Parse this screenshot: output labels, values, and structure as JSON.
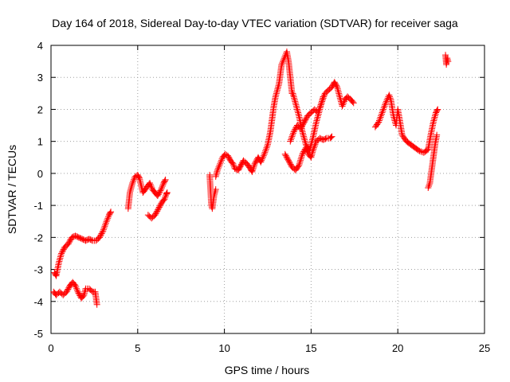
{
  "chart_data": {
    "type": "scatter",
    "title": "Day 164 of 2018, Sidereal Day-to-day VTEC variation (SDTVAR) for receiver saga",
    "xlabel": "GPS time / hours",
    "ylabel": "SDTVAR / TECUs",
    "xlim": [
      0,
      25
    ],
    "ylim": [
      -5,
      4
    ],
    "xticks": [
      0,
      5,
      10,
      15,
      20,
      25
    ],
    "yticks": [
      -5,
      -4,
      -3,
      -2,
      -1,
      0,
      1,
      2,
      3,
      4
    ],
    "grid": true,
    "marker": "+",
    "colors": {
      "series": "#ff0000"
    },
    "series": [
      {
        "segments": [
          [
            [
              0.2,
              -3.1
            ],
            [
              0.3,
              -3.2
            ],
            [
              0.45,
              -2.8
            ],
            [
              0.6,
              -2.5
            ],
            [
              0.8,
              -2.3
            ],
            [
              1.0,
              -2.2
            ],
            [
              1.2,
              -2.0
            ],
            [
              1.4,
              -1.95
            ],
            [
              1.6,
              -2.0
            ],
            [
              1.8,
              -2.05
            ],
            [
              2.0,
              -2.1
            ],
            [
              2.2,
              -2.05
            ],
            [
              2.4,
              -2.1
            ],
            [
              2.6,
              -2.1
            ],
            [
              2.8,
              -2.0
            ],
            [
              3.0,
              -1.8
            ],
            [
              3.2,
              -1.5
            ],
            [
              3.35,
              -1.3
            ],
            [
              3.45,
              -1.2
            ]
          ],
          [
            [
              0.15,
              -3.7
            ],
            [
              0.3,
              -3.8
            ],
            [
              0.5,
              -3.7
            ],
            [
              0.7,
              -3.8
            ],
            [
              0.9,
              -3.7
            ],
            [
              1.1,
              -3.5
            ],
            [
              1.25,
              -3.4
            ],
            [
              1.4,
              -3.5
            ],
            [
              1.55,
              -3.7
            ],
            [
              1.75,
              -3.9
            ],
            [
              1.9,
              -3.8
            ],
            [
              2.0,
              -3.6
            ],
            [
              2.2,
              -3.6
            ],
            [
              2.4,
              -3.7
            ],
            [
              2.55,
              -3.7
            ],
            [
              2.65,
              -4.1
            ]
          ],
          [
            [
              4.45,
              -1.1
            ],
            [
              4.55,
              -0.6
            ],
            [
              4.7,
              -0.3
            ],
            [
              4.85,
              -0.1
            ],
            [
              5.0,
              -0.05
            ],
            [
              5.1,
              -0.15
            ],
            [
              5.3,
              -0.6
            ],
            [
              5.5,
              -0.45
            ],
            [
              5.7,
              -0.3
            ],
            [
              5.85,
              -0.5
            ],
            [
              6.0,
              -0.6
            ],
            [
              6.15,
              -0.7
            ],
            [
              6.35,
              -0.5
            ],
            [
              6.5,
              -0.3
            ],
            [
              6.6,
              -0.2
            ]
          ],
          [
            [
              5.6,
              -1.3
            ],
            [
              5.8,
              -1.4
            ],
            [
              6.0,
              -1.3
            ],
            [
              6.2,
              -1.1
            ],
            [
              6.4,
              -0.9
            ],
            [
              6.55,
              -0.8
            ],
            [
              6.65,
              -0.65
            ],
            [
              6.7,
              -0.6
            ]
          ],
          [
            [
              9.15,
              -0.05
            ],
            [
              9.2,
              -0.5
            ],
            [
              9.25,
              -1.0
            ],
            [
              9.3,
              -1.1
            ],
            [
              9.4,
              -0.7
            ],
            [
              9.5,
              -0.5
            ]
          ],
          [
            [
              9.5,
              -0.1
            ],
            [
              9.6,
              0.1
            ],
            [
              9.75,
              0.3
            ],
            [
              9.9,
              0.5
            ],
            [
              10.05,
              0.6
            ],
            [
              10.2,
              0.55
            ],
            [
              10.35,
              0.4
            ],
            [
              10.5,
              0.3
            ],
            [
              10.6,
              0.15
            ],
            [
              10.8,
              0.1
            ],
            [
              10.95,
              0.25
            ],
            [
              11.1,
              0.4
            ],
            [
              11.3,
              0.3
            ],
            [
              11.5,
              0.15
            ],
            [
              11.6,
              0.05
            ],
            [
              11.75,
              0.3
            ],
            [
              11.95,
              0.5
            ],
            [
              12.1,
              0.35
            ],
            [
              12.3,
              0.6
            ],
            [
              12.5,
              0.9
            ],
            [
              12.65,
              1.3
            ],
            [
              12.75,
              1.7
            ],
            [
              12.85,
              2.1
            ],
            [
              12.95,
              2.4
            ],
            [
              13.05,
              2.6
            ],
            [
              13.15,
              2.8
            ],
            [
              13.3,
              3.4
            ],
            [
              13.45,
              3.6
            ],
            [
              13.6,
              3.8
            ],
            [
              13.7,
              3.5
            ],
            [
              13.8,
              3.0
            ],
            [
              13.9,
              2.5
            ]
          ],
          [
            [
              13.5,
              0.6
            ],
            [
              13.7,
              0.4
            ],
            [
              13.9,
              0.2
            ],
            [
              14.1,
              0.1
            ],
            [
              14.3,
              0.25
            ],
            [
              14.5,
              0.6
            ],
            [
              14.7,
              0.8
            ],
            [
              14.85,
              0.6
            ],
            [
              15.0,
              0.5
            ],
            [
              15.1,
              0.7
            ],
            [
              15.3,
              1.0
            ],
            [
              15.5,
              1.1
            ],
            [
              15.7,
              1.05
            ],
            [
              15.9,
              1.1
            ],
            [
              16.1,
              1.1
            ],
            [
              16.2,
              1.15
            ]
          ],
          [
            [
              13.8,
              1.0
            ],
            [
              14.0,
              1.3
            ],
            [
              14.2,
              1.5
            ],
            [
              14.4,
              1.4
            ],
            [
              14.6,
              1.6
            ],
            [
              14.8,
              1.8
            ],
            [
              15.0,
              1.9
            ],
            [
              15.2,
              2.0
            ],
            [
              15.4,
              1.9
            ],
            [
              15.6,
              2.2
            ],
            [
              15.8,
              2.5
            ],
            [
              16.0,
              2.6
            ],
            [
              16.2,
              2.7
            ],
            [
              16.35,
              2.85
            ],
            [
              16.5,
              2.7
            ],
            [
              16.65,
              2.4
            ],
            [
              16.8,
              2.1
            ],
            [
              16.95,
              2.3
            ],
            [
              17.1,
              2.4
            ],
            [
              17.3,
              2.3
            ],
            [
              17.45,
              2.2
            ]
          ],
          [
            [
              13.95,
              2.5
            ],
            [
              14.1,
              2.2
            ],
            [
              14.3,
              1.8
            ],
            [
              14.5,
              1.3
            ],
            [
              14.7,
              0.9
            ],
            [
              14.9,
              0.7
            ],
            [
              15.1,
              1.1
            ],
            [
              15.3,
              1.6
            ],
            [
              15.5,
              2.0
            ],
            [
              15.7,
              2.4
            ]
          ],
          [
            [
              18.7,
              1.45
            ],
            [
              18.9,
              1.6
            ],
            [
              19.1,
              1.9
            ],
            [
              19.3,
              2.2
            ],
            [
              19.5,
              2.45
            ],
            [
              19.6,
              2.3
            ],
            [
              19.75,
              1.8
            ],
            [
              19.9,
              1.5
            ],
            [
              20.0,
              2.0
            ],
            [
              20.1,
              1.7
            ],
            [
              20.25,
              1.2
            ],
            [
              20.5,
              1.0
            ],
            [
              20.75,
              0.9
            ],
            [
              21.0,
              0.8
            ],
            [
              21.25,
              0.7
            ],
            [
              21.5,
              0.65
            ],
            [
              21.75,
              0.75
            ],
            [
              21.9,
              1.2
            ],
            [
              22.05,
              1.6
            ],
            [
              22.2,
              1.9
            ],
            [
              22.3,
              2.0
            ]
          ],
          [
            [
              21.75,
              -0.45
            ],
            [
              21.85,
              -0.3
            ],
            [
              21.95,
              0.1
            ],
            [
              22.05,
              0.5
            ],
            [
              22.15,
              0.9
            ],
            [
              22.25,
              1.2
            ]
          ],
          [
            [
              22.75,
              3.7
            ],
            [
              22.8,
              3.4
            ],
            [
              22.85,
              3.6
            ],
            [
              22.9,
              3.5
            ]
          ]
        ]
      }
    ]
  }
}
